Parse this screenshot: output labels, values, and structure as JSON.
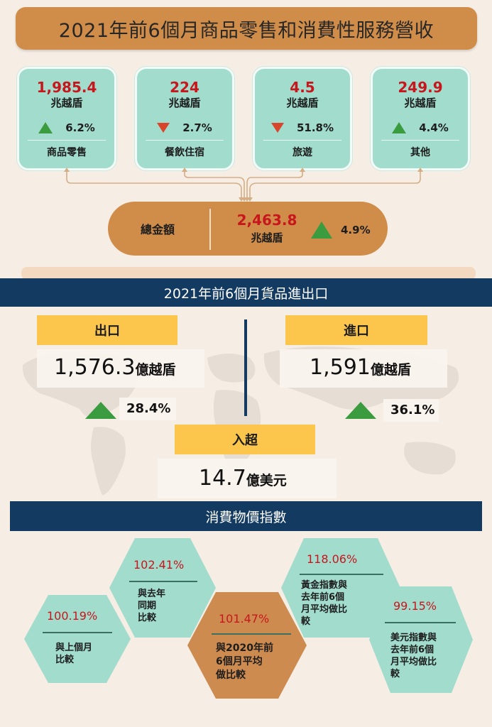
{
  "retail": {
    "title": "2021年前6個月商品零售和消費性服務營收",
    "cards": [
      {
        "value": "1,985.4",
        "unit": "兆越盾",
        "direction": "up",
        "change": "6.2%",
        "label": "商品零售"
      },
      {
        "value": "224",
        "unit": "兆越盾",
        "direction": "down",
        "change": "2.7%",
        "label": "餐飲住宿"
      },
      {
        "value": "4.5",
        "unit": "兆越盾",
        "direction": "down",
        "change": "51.8%",
        "label": "旅遊"
      },
      {
        "value": "249.9",
        "unit": "兆越盾",
        "direction": "up",
        "change": "4.4%",
        "label": "其他"
      }
    ],
    "total": {
      "label": "總金額",
      "value": "2,463.8",
      "unit": "兆越盾",
      "direction": "up",
      "change": "4.9%"
    }
  },
  "trade": {
    "title": "2021年前6個月貨品進出口",
    "export": {
      "label": "出口",
      "value": "1,576.3",
      "unit": "億越盾",
      "direction": "up",
      "change": "28.4%"
    },
    "import": {
      "label": "進口",
      "value": "1,591",
      "unit": "億越盾",
      "direction": "up",
      "change": "36.1%"
    },
    "surplus": {
      "label": "入超",
      "value": "14.7",
      "unit": "億美元"
    }
  },
  "cpi": {
    "title": "消費物價指數",
    "items": [
      {
        "value": "100.19%",
        "desc": "與上個月\n比較"
      },
      {
        "value": "102.41%",
        "desc": "與去年\n同期\n比較"
      },
      {
        "value": "101.47%",
        "desc": "與2020年前\n6個月平均\n做比較"
      },
      {
        "value": "118.06%",
        "desc": "黃金指數與\n去年前6個\n月平均做比\n較"
      },
      {
        "value": "99.15%",
        "desc": "美元指數與\n去年前6個\n月平均做比\n較"
      }
    ]
  },
  "colors": {
    "orange": "#d08d4a",
    "teal": "#a2dccd",
    "navy": "#133a61",
    "yellow": "#fbc64b",
    "red": "#c8161d",
    "up_green": "#3a9b3f",
    "down_red": "#d9452b"
  }
}
